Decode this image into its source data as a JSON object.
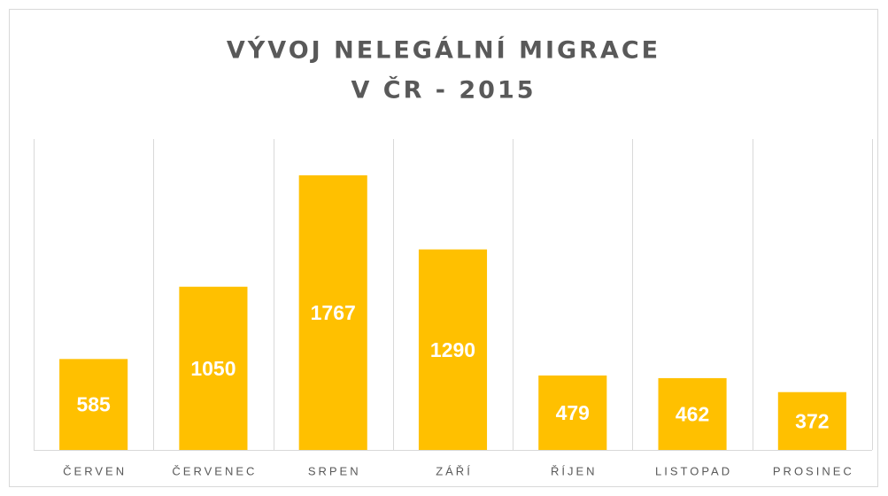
{
  "chart_data": {
    "type": "bar",
    "title": [
      "VÝVOJ NELEGÁLNÍ MIGRACE",
      "V ČR - 2015"
    ],
    "categories": [
      "ČERVEN",
      "ČERVENEC",
      "SRPEN",
      "ZÁŘÍ",
      "ŘÍJEN",
      "LISTOPAD",
      "PROSINEC"
    ],
    "values": [
      585,
      1050,
      1767,
      1290,
      479,
      462,
      372
    ],
    "color": "#ffc000",
    "ylim": [
      0,
      2000
    ]
  }
}
